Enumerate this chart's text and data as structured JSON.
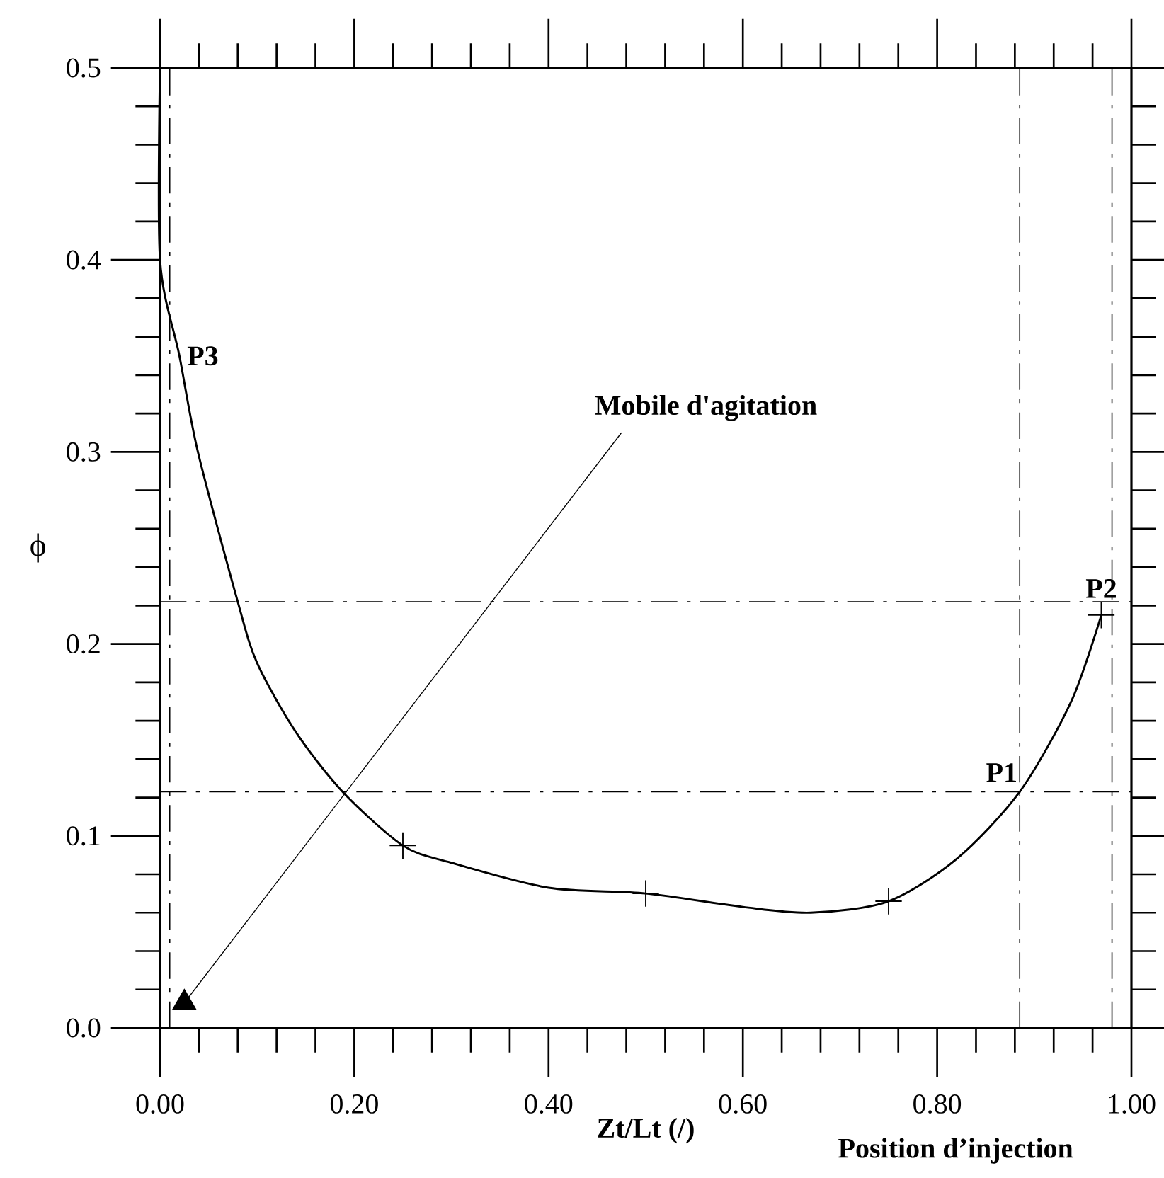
{
  "chart_data": {
    "type": "line",
    "xlabel": "Zt/Lt (/)",
    "ylabel": "ϕ",
    "xlim": [
      0,
      1
    ],
    "ylim": [
      0,
      0.5
    ],
    "xticks": [
      {
        "value": 0,
        "label": "0.00"
      },
      {
        "value": 0.2,
        "label": "0.20"
      },
      {
        "value": 0.4,
        "label": "0.40"
      },
      {
        "value": 0.6,
        "label": "0.60"
      },
      {
        "value": 0.8,
        "label": "0.80"
      },
      {
        "value": 1,
        "label": "1.00"
      }
    ],
    "yticks": [
      {
        "value": 0,
        "label": "0.0"
      },
      {
        "value": 0.1,
        "label": "0.1"
      },
      {
        "value": 0.2,
        "label": "0.2"
      },
      {
        "value": 0.3,
        "label": "0.3"
      },
      {
        "value": 0.4,
        "label": "0.4"
      },
      {
        "value": 0.5,
        "label": "0.5"
      }
    ],
    "series": [
      {
        "color": "#000000",
        "marker": "none",
        "x": [
          0.0,
          0.0,
          0.02,
          0.039,
          0.08,
          0.1,
          0.14,
          0.188,
          0.25,
          0.3,
          0.4,
          0.5,
          0.6,
          0.67,
          0.75,
          0.82,
          0.885,
          0.938,
          0.969
        ],
        "values": [
          0.5,
          0.4,
          0.35,
          0.3,
          0.222,
          0.19,
          0.154,
          0.123,
          0.095,
          0.086,
          0.073,
          0.07,
          0.063,
          0.06,
          0.066,
          0.088,
          0.123,
          0.17,
          0.215
        ]
      },
      {
        "type": "scatter",
        "color": "#000000",
        "marker": "cross",
        "x": [
          0.25,
          0.5,
          0.75,
          0.969
        ],
        "values": [
          0.095,
          0.07,
          0.066,
          0.215
        ]
      },
      {
        "type": "scatter",
        "color": "#000000",
        "marker": "triangle",
        "x": [
          0.025
        ],
        "values": [
          0.013
        ]
      }
    ],
    "ref_lines": [
      {
        "axis": "y",
        "value": 0.222,
        "line_style": "dashed"
      },
      {
        "axis": "y",
        "value": 0.123,
        "line_style": "dashed"
      },
      {
        "axis": "x",
        "value": 0.01,
        "line_style": "dashed"
      },
      {
        "axis": "x",
        "value": 0.885,
        "line_style": "dashed"
      },
      {
        "axis": "x",
        "value": 0.98,
        "line_style": "dashed"
      }
    ],
    "annotations": [
      {
        "text": "P1",
        "x": 0.885,
        "y": 0.123
      },
      {
        "text": "P2",
        "x": 0.969,
        "y": 0.215
      },
      {
        "text": "P3",
        "x": 0.01,
        "y": 0.35
      },
      {
        "text": "Mobile d'agitation",
        "x": 0.025,
        "y": 0.013
      },
      "Position d’injection"
    ]
  }
}
